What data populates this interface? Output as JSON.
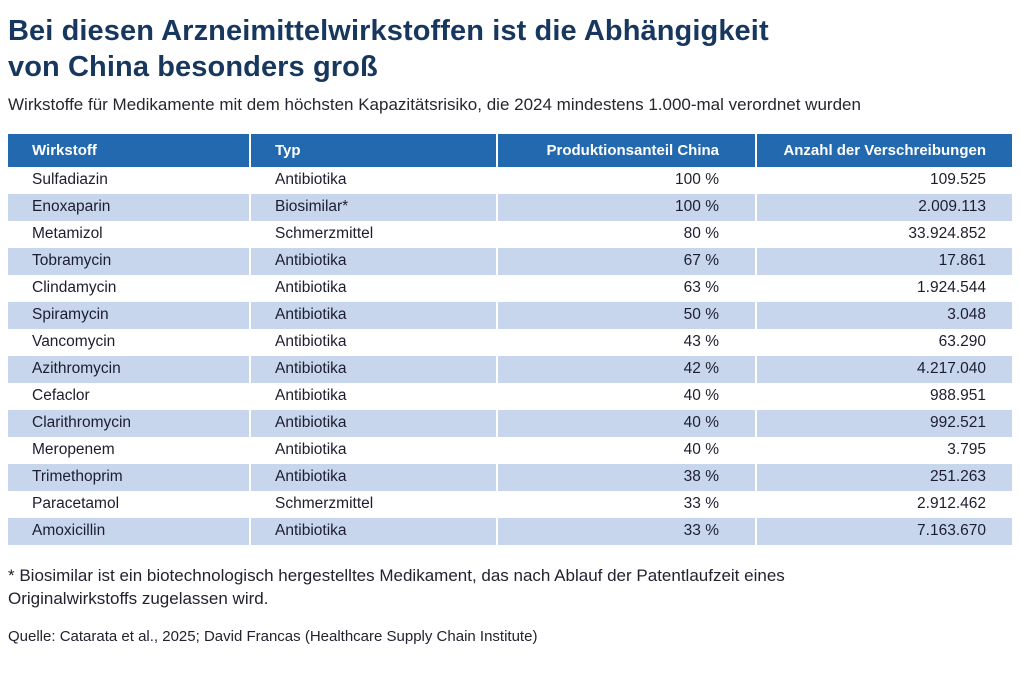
{
  "header": {
    "title_line1": "Bei diesen Arzneimittelwirkstoffen ist die Abhängigkeit",
    "title_line2": "von China besonders groß",
    "subtitle": "Wirkstoffe für Medikamente mit dem höchsten Kapazitätsrisiko, die 2024 mindestens 1.000-mal verordnet wurden"
  },
  "chart_data": {
    "type": "table",
    "title": "Bei diesen Arzneimittelwirkstoffen ist die Abhängigkeit von China besonders groß",
    "columns": [
      "Wirkstoff",
      "Typ",
      "Produktionsanteil China",
      "Anzahl der Verschreibungen"
    ],
    "rows": [
      [
        "Sulfadiazin",
        "Antibiotika",
        "100 %",
        "109.525"
      ],
      [
        "Enoxaparin",
        "Biosimilar*",
        "100 %",
        "2.009.113"
      ],
      [
        "Metamizol",
        "Schmerzmittel",
        "80 %",
        "33.924.852"
      ],
      [
        "Tobramycin",
        "Antibiotika",
        "67 %",
        "17.861"
      ],
      [
        "Clindamycin",
        "Antibiotika",
        "63 %",
        "1.924.544"
      ],
      [
        "Spiramycin",
        "Antibiotika",
        "50 %",
        "3.048"
      ],
      [
        "Vancomycin",
        "Antibiotika",
        "43 %",
        "63.290"
      ],
      [
        "Azithromycin",
        "Antibiotika",
        "42 %",
        "4.217.040"
      ],
      [
        "Cefaclor",
        "Antibiotika",
        "40 %",
        "988.951"
      ],
      [
        "Clarithromycin",
        "Antibiotika",
        "40 %",
        "992.521"
      ],
      [
        "Meropenem",
        "Antibiotika",
        "40 %",
        "3.795"
      ],
      [
        "Trimethoprim",
        "Antibiotika",
        "38 %",
        "251.263"
      ],
      [
        "Paracetamol",
        "Schmerzmittel",
        "33 %",
        "2.912.462"
      ],
      [
        "Amoxicillin",
        "Antibiotika",
        "33 %",
        "7.163.670"
      ]
    ]
  },
  "footer": {
    "footnote": "* Biosimilar ist ein biotechnologisch hergestelltes Medikament, das nach Ablauf der Patentlaufzeit eines Originalwirkstoffs zugelassen wird.",
    "source": "Quelle: Catarata et al., 2025; David Francas (Healthcare Supply Chain Institute)"
  },
  "colors": {
    "title_color": "#17375e",
    "header_bg": "#2269af",
    "row_alt_bg": "#c7d6ec",
    "text_color": "#1d1d30"
  }
}
